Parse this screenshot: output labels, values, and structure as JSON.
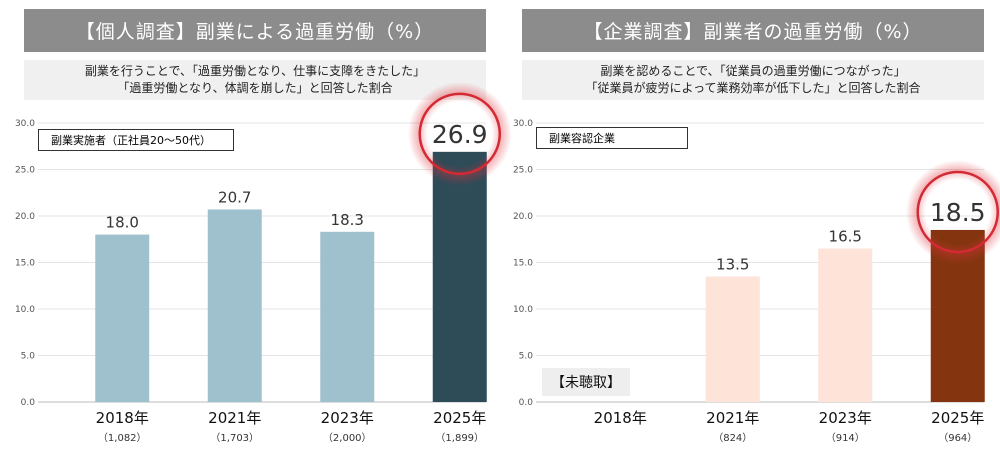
{
  "panels": [
    {
      "header": "【個人調査】副業による過重労働（%）",
      "subtitle_lines": [
        "副業を行うことで、「過重労働となり、仕事に支障をきたした」",
        "「過重労働となり、体調を崩した」と回答した割合"
      ],
      "legend": "副業実施者（正社員20～50代）",
      "note": null
    },
    {
      "header": "【企業調査】副業者の過重労働（%）",
      "subtitle_lines": [
        "副業を認めることで、「従業員の過重労働につながった」",
        "「従業員が疲労によって業務効率が低下した」と回答した割合"
      ],
      "legend": "副業容認企業",
      "note": "【未聴取】"
    }
  ],
  "chart_data": [
    {
      "type": "bar",
      "title": "【個人調査】副業による過重労働（%）",
      "categories": [
        "2018年",
        "2021年",
        "2023年",
        "2025年"
      ],
      "sample_sizes": [
        "（1,082）",
        "（1,703）",
        "（2,000）",
        "（1,899）"
      ],
      "values": [
        18.0,
        20.7,
        18.3,
        26.9
      ],
      "labels": [
        "18.0",
        "20.7",
        "18.3",
        "26.9"
      ],
      "colors": [
        "#9fc1ce",
        "#9fc1ce",
        "#9fc1ce",
        "#2e4b58"
      ],
      "highlight_index": 3,
      "ylim": [
        0,
        30
      ],
      "yticks": [
        "0.0",
        "5.0",
        "10.0",
        "15.0",
        "20.0",
        "25.0",
        "30.0"
      ]
    },
    {
      "type": "bar",
      "title": "【企業調査】副業者の過重労働（%）",
      "categories": [
        "2018年",
        "2021年",
        "2023年",
        "2025年"
      ],
      "sample_sizes": [
        "",
        "（824）",
        "（914）",
        "（964）"
      ],
      "values": [
        null,
        13.5,
        16.5,
        18.5
      ],
      "labels": [
        "",
        "13.5",
        "16.5",
        "18.5"
      ],
      "colors": [
        "#fde3d8",
        "#fde3d8",
        "#fde3d8",
        "#843510"
      ],
      "highlight_index": 3,
      "ylim": [
        0,
        30
      ],
      "yticks": [
        "0.0",
        "5.0",
        "10.0",
        "15.0",
        "20.0",
        "25.0",
        "30.0"
      ]
    }
  ]
}
